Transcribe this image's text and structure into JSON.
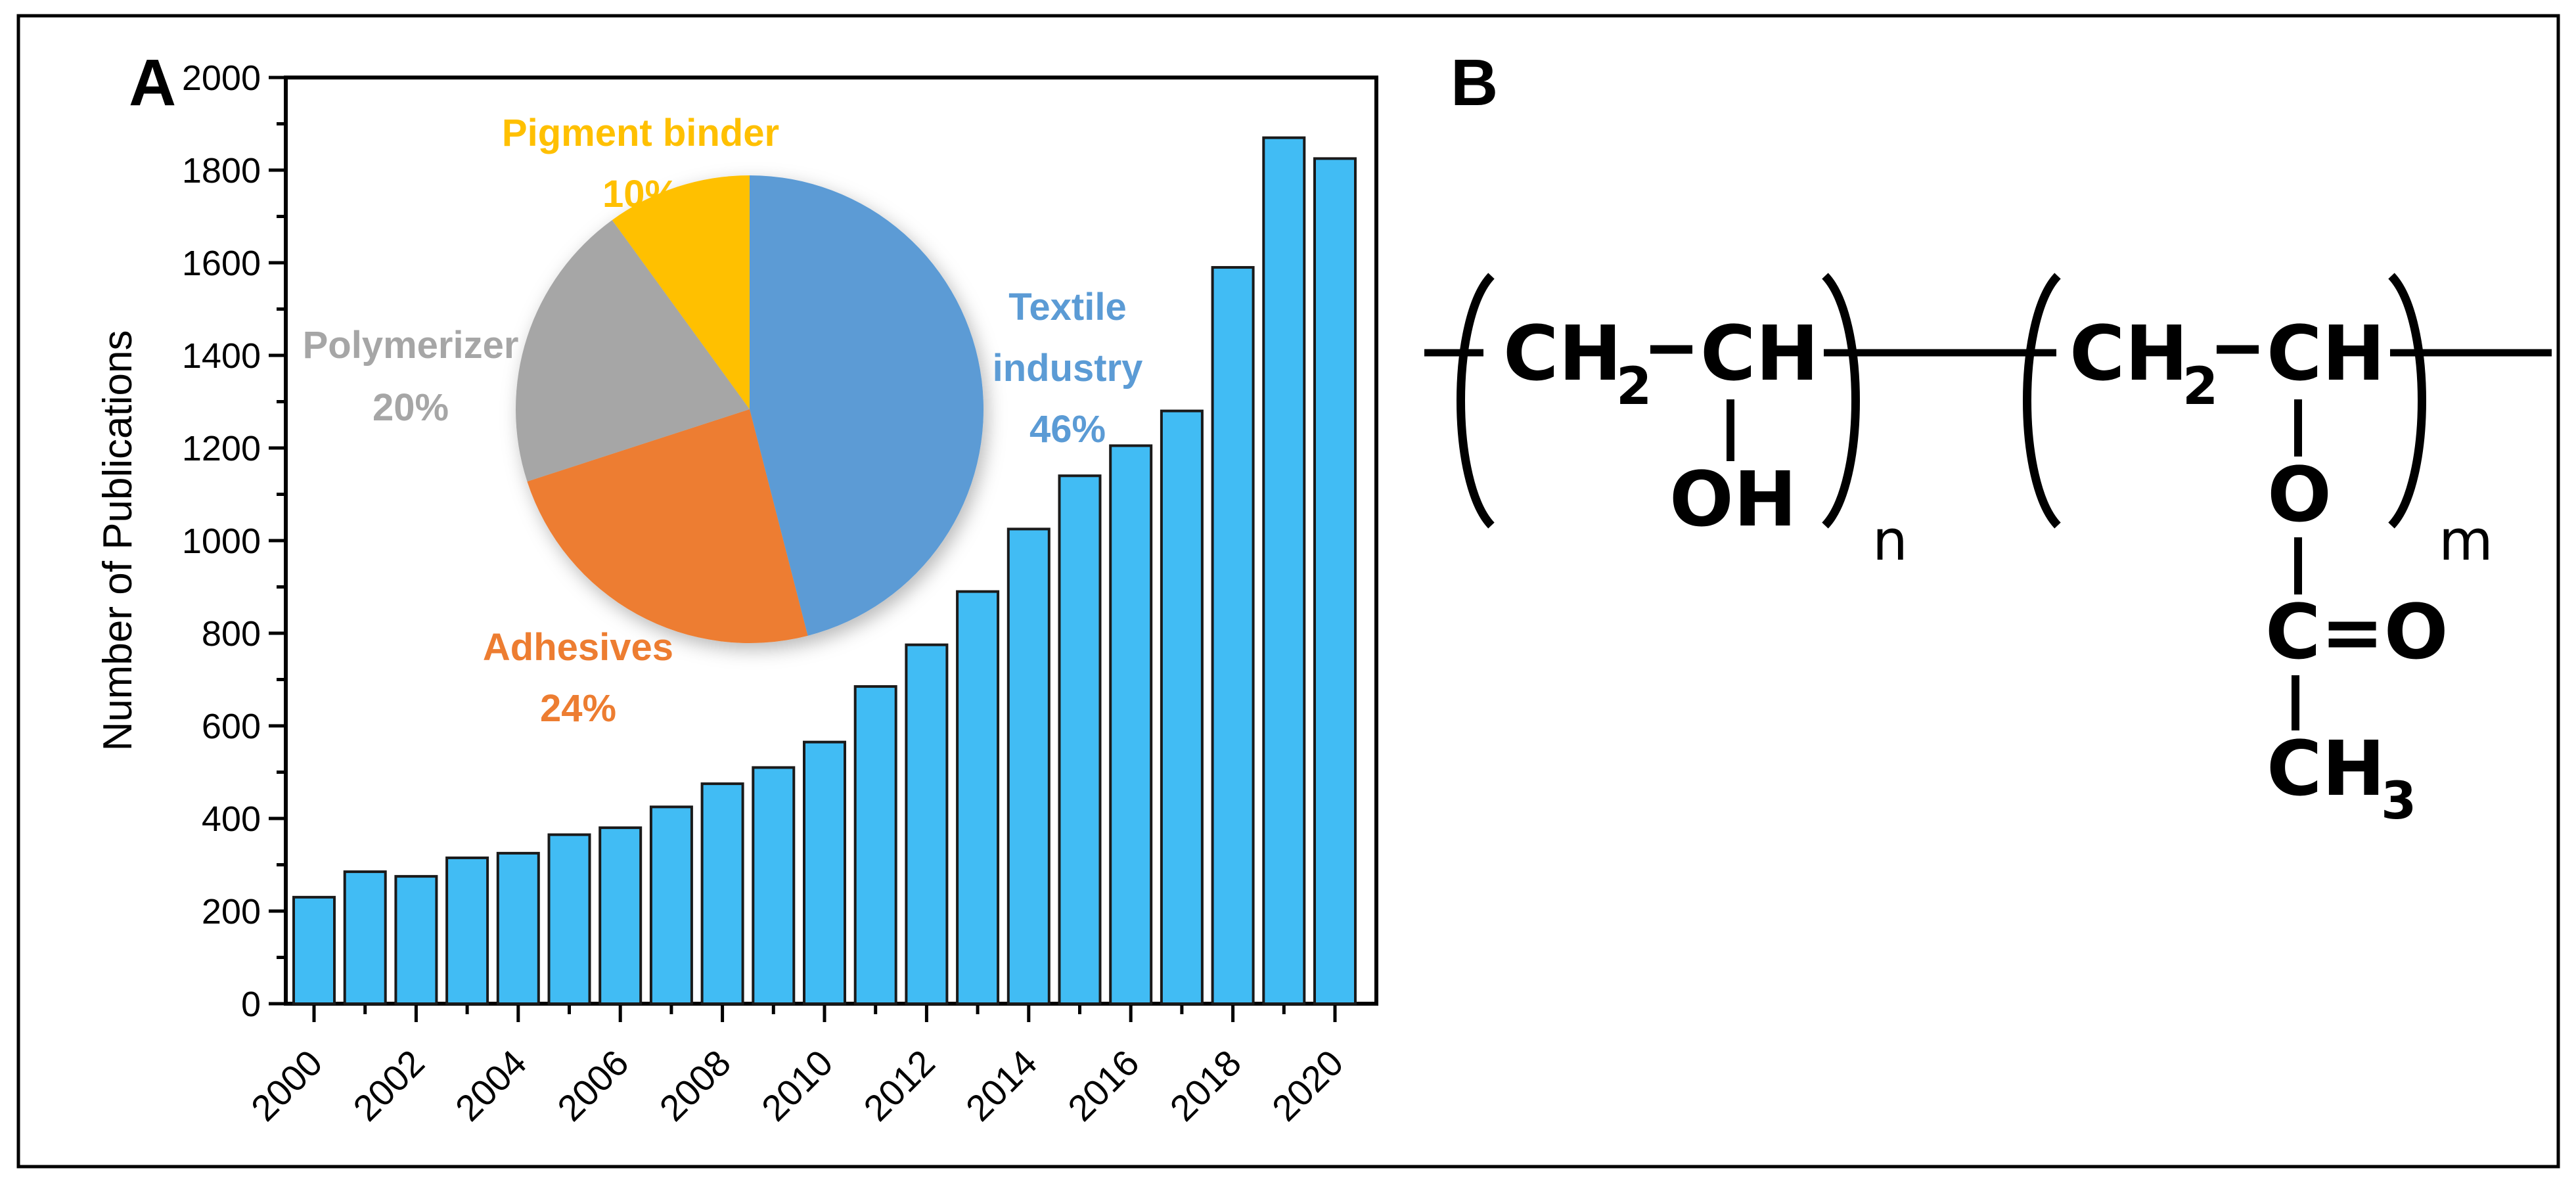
{
  "figure": {
    "panel_a_label": "A",
    "panel_b_label": "B",
    "background_color": "#ffffff",
    "border_color": "#000000"
  },
  "chart_data": [
    {
      "type": "bar",
      "title": "",
      "xlabel": "",
      "ylabel": "Number of Publications",
      "categories": [
        "2000",
        "2001",
        "2002",
        "2003",
        "2004",
        "2005",
        "2006",
        "2007",
        "2008",
        "2009",
        "2010",
        "2011",
        "2012",
        "2013",
        "2014",
        "2015",
        "2016",
        "2017",
        "2018",
        "2019",
        "2020"
      ],
      "values": [
        230,
        285,
        275,
        315,
        325,
        365,
        380,
        425,
        475,
        510,
        565,
        685,
        775,
        890,
        1025,
        1140,
        1205,
        1280,
        1590,
        1870,
        1825
      ],
      "ylim": [
        0,
        2000
      ],
      "y_major_tick_step": 200,
      "y_minor_tick_step": 100,
      "y_tick_labels": [
        "0",
        "200",
        "400",
        "600",
        "800",
        "1000",
        "1200",
        "1400",
        "1600",
        "1800",
        "2000"
      ],
      "x_labeled_ticks": [
        "2000",
        "2002",
        "2004",
        "2006",
        "2008",
        "2010",
        "2012",
        "2014",
        "2016",
        "2018",
        "2020"
      ],
      "x_tick_label_rotation_deg": -45,
      "grid": false,
      "legend_position": "none",
      "bar_fill": "#41BCF4",
      "bar_stroke": "#1a1a1a",
      "axis_color": "#000000"
    },
    {
      "type": "pie",
      "title": "",
      "start_angle": "12-o-clock-clockwise",
      "legend_position": "labels-around-pie",
      "slices": [
        {
          "label": "Textile industry",
          "value_pct": 46,
          "color": "#5B9BD5",
          "label_lines": [
            "Textile",
            "industry",
            "46%"
          ]
        },
        {
          "label": "Adhesives",
          "value_pct": 24,
          "color": "#ED7D31",
          "label_lines": [
            "Adhesives",
            "24%"
          ]
        },
        {
          "label": "Polymerizer",
          "value_pct": 20,
          "color": "#A6A6A6",
          "label_lines": [
            "Polymerizer",
            "20%"
          ]
        },
        {
          "label": "Pigment binder",
          "value_pct": 10,
          "color": "#FFC000",
          "label_lines": [
            "Pigment binder",
            "10%"
          ]
        }
      ]
    }
  ],
  "structure": {
    "unit1": {
      "carbon1": "CH",
      "carbon1_subscript": "2",
      "carbon2": "CH",
      "pendant_hydroxyl": "OH",
      "repeat_subscript": "n"
    },
    "unit2": {
      "carbon1": "CH",
      "carbon1_subscript": "2",
      "carbon2": "CH",
      "ester_oxygen": "O",
      "carbonyl": "C=O",
      "methyl": "CH",
      "methyl_subscript": "3",
      "repeat_subscript": "m"
    }
  }
}
